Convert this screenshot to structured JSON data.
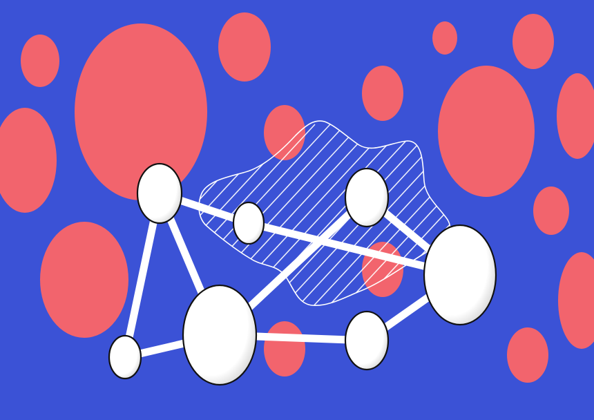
{
  "colors": {
    "background": "#3b52d6",
    "bubble": "#f2646d",
    "node_fill": "#ffffff",
    "node_shade": "#d4d4d4",
    "node_outline": "#111111",
    "edge": "#ffffff",
    "blob_outline": "#ffffff"
  },
  "illustration": {
    "icon": "network-graph-illustration",
    "nodes": [
      {
        "id": "node-a"
      },
      {
        "id": "node-b"
      },
      {
        "id": "node-c"
      },
      {
        "id": "node-d"
      },
      {
        "id": "node-e"
      },
      {
        "id": "node-f"
      },
      {
        "id": "node-g"
      }
    ],
    "edges": [
      {
        "from": "node-a",
        "to": "node-b"
      },
      {
        "from": "node-b",
        "to": "node-f"
      },
      {
        "from": "node-a",
        "to": "node-g"
      },
      {
        "from": "node-a",
        "to": "node-e"
      },
      {
        "from": "node-g",
        "to": "node-e"
      },
      {
        "from": "node-e",
        "to": "node-c"
      },
      {
        "from": "node-e",
        "to": "node-d"
      },
      {
        "from": "node-d",
        "to": "node-f"
      },
      {
        "from": "node-c",
        "to": "node-f"
      }
    ]
  }
}
